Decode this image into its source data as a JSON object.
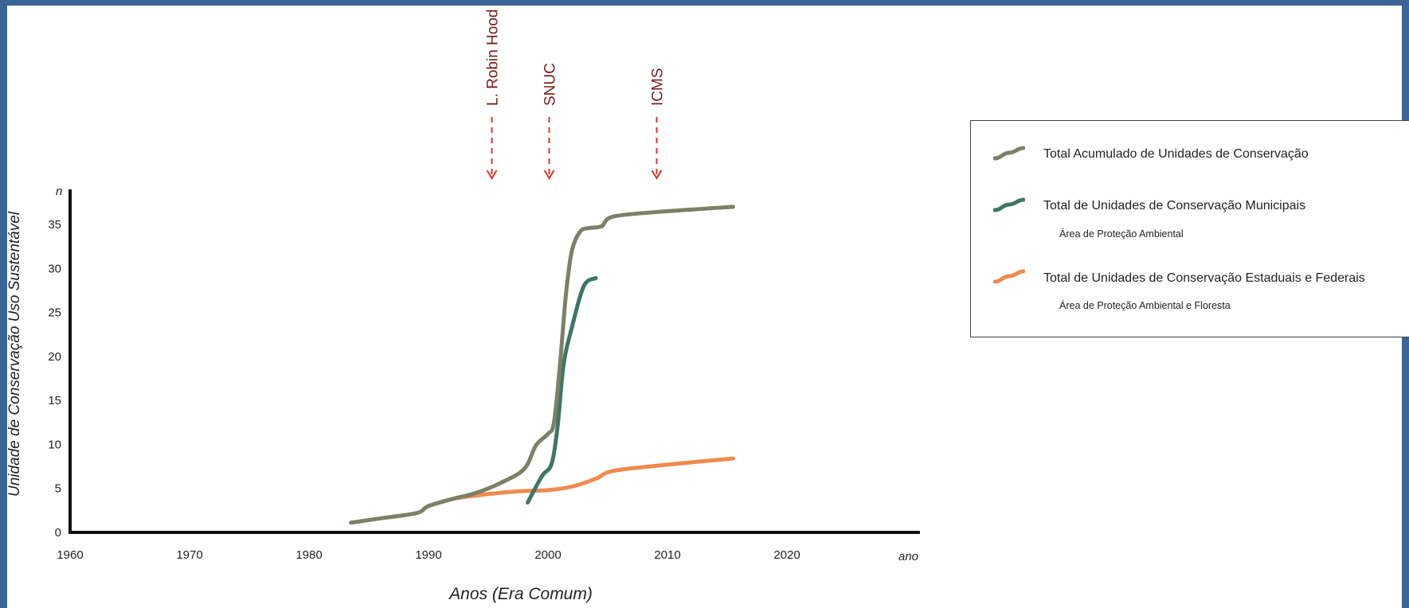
{
  "chart_data": {
    "type": "line",
    "xlabel": "Anos (Era Comum)",
    "ylabel": "Unidade de Conservação  Uso Sustentável",
    "x_unit_label": "ano",
    "y_unit_label": "n",
    "xlim": [
      1960,
      2025
    ],
    "ylim": [
      0,
      38
    ],
    "x_ticks": [
      1960,
      1970,
      1980,
      1990,
      2000,
      2010,
      2020
    ],
    "y_ticks": [
      0,
      5,
      10,
      15,
      20,
      25,
      30,
      35
    ],
    "grid": false,
    "legend_position": "right",
    "series": [
      {
        "name": "Total Acumulado de Unidades de Conservação",
        "color": "#7b8166",
        "points": [
          [
            1983.5,
            1.1
          ],
          [
            1986,
            1.6
          ],
          [
            1989,
            2.2
          ],
          [
            1990,
            3
          ],
          [
            1992,
            3.8
          ],
          [
            1994,
            4.5
          ],
          [
            1996,
            5.6
          ],
          [
            1998,
            7.2
          ],
          [
            1999,
            9.9
          ],
          [
            2000,
            11.2
          ],
          [
            2000.5,
            12.5
          ],
          [
            2001,
            19
          ],
          [
            2001.5,
            27
          ],
          [
            2002,
            32
          ],
          [
            2002.7,
            34.2
          ],
          [
            2003.5,
            34.6
          ],
          [
            2004.5,
            34.8
          ],
          [
            2005.5,
            35.9
          ],
          [
            2010,
            36.5
          ],
          [
            2015.5,
            37
          ]
        ]
      },
      {
        "name": "Total de Unidades de Conservação Municipais",
        "sublabel": "Área de Proteção Ambiental",
        "color": "#3f7765",
        "points": [
          [
            1998.3,
            3.4
          ],
          [
            1999.5,
            6.4
          ],
          [
            2000.3,
            7.8
          ],
          [
            2000.8,
            12
          ],
          [
            2001.3,
            19
          ],
          [
            2002,
            23.3
          ],
          [
            2003,
            28
          ],
          [
            2004,
            28.9
          ]
        ]
      },
      {
        "name": "Total de Unidades de Conservação Estaduais e Federais",
        "sublabel": "Área de Proteção Ambiental  e Floresta",
        "color": "#ef8a4e",
        "points": [
          [
            1990,
            3
          ],
          [
            1992,
            3.8
          ],
          [
            1994,
            4.2
          ],
          [
            1996,
            4.5
          ],
          [
            1998,
            4.7
          ],
          [
            2000,
            4.8
          ],
          [
            2002,
            5.2
          ],
          [
            2004,
            6.1
          ],
          [
            2005.5,
            7
          ],
          [
            2010,
            7.7
          ],
          [
            2015.5,
            8.4
          ]
        ]
      }
    ],
    "events": [
      {
        "label": "L. Robin Hood",
        "x": 1995.3
      },
      {
        "label": "SNUC",
        "x": 2000.1
      },
      {
        "label": "ICMS",
        "x": 2009.1
      }
    ]
  }
}
